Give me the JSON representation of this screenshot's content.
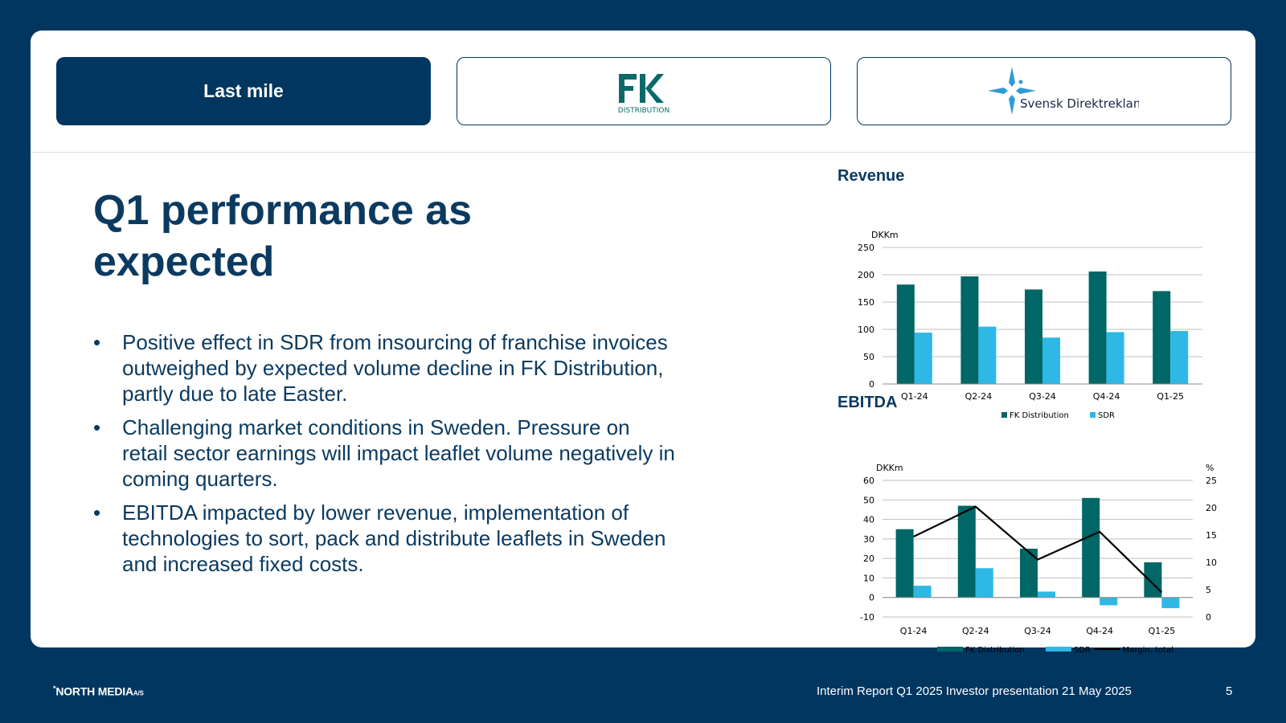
{
  "header": {
    "tab_active_label": "Last mile",
    "fk_logo_text": "FK",
    "fk_logo_subtext": "DISTRIBUTION",
    "sdr_logo_text": "Svensk Direktreklam"
  },
  "colors": {
    "navy": "#003660",
    "teal": "#006666",
    "light_blue": "#2EB8E6",
    "margin_line": "#000000"
  },
  "main": {
    "title": "Q1 performance as expected",
    "bullets": [
      "Positive effect in SDR from insourcing of franchise invoices outweighed by expected volume decline in FK Distribution, partly due to late Easter.",
      "Challenging market conditions in Sweden. Pressure on retail sector earnings will impact leaflet volume negatively in coming quarters.",
      "EBITDA impacted by lower revenue, implementation of technologies to sort, pack and distribute leaflets in Sweden and increased fixed costs."
    ],
    "bullet_char": "•"
  },
  "chart_data": [
    {
      "type": "bar",
      "title": "Revenue",
      "ylabel": "DKKm",
      "categories": [
        "Q1-24",
        "Q2-24",
        "Q3-24",
        "Q4-24",
        "Q1-25"
      ],
      "ylim": [
        0,
        250
      ],
      "yticks": [
        0,
        50,
        100,
        150,
        200,
        250
      ],
      "grid": true,
      "legend_position": "bottom",
      "series": [
        {
          "name": "FK Distribution",
          "values": [
            182,
            197,
            173,
            206,
            170
          ]
        },
        {
          "name": "SDR",
          "values": [
            94,
            105,
            85,
            95,
            97
          ]
        }
      ]
    },
    {
      "type": "bar",
      "title": "EBITDA",
      "ylabel": "DKKm",
      "y2label": "%",
      "categories": [
        "Q1-24",
        "Q2-24",
        "Q3-24",
        "Q4-24",
        "Q1-25"
      ],
      "ylim": [
        -10,
        60
      ],
      "yticks": [
        -10,
        0,
        10,
        20,
        30,
        40,
        50,
        60
      ],
      "y2lim": [
        0,
        25
      ],
      "y2ticks": [
        0,
        5,
        10,
        15,
        20,
        25
      ],
      "grid": true,
      "legend_position": "bottom",
      "series": [
        {
          "name": "FK Distribution",
          "values": [
            35,
            47,
            25,
            51,
            18
          ]
        },
        {
          "name": "SDR",
          "values": [
            6,
            15,
            3,
            -4,
            -5.5
          ]
        },
        {
          "name": "Margin, total",
          "type": "line",
          "axis": "right",
          "values": [
            14.7,
            20.2,
            10.5,
            15.6,
            4.5
          ]
        }
      ]
    }
  ],
  "footer": {
    "logo_star": "*",
    "logo_text": "NORTH MEDIA",
    "logo_suffix": "A/S",
    "text": "Interim Report Q1 2025 Investor presentation 21 May 2025",
    "page_number": "5"
  }
}
